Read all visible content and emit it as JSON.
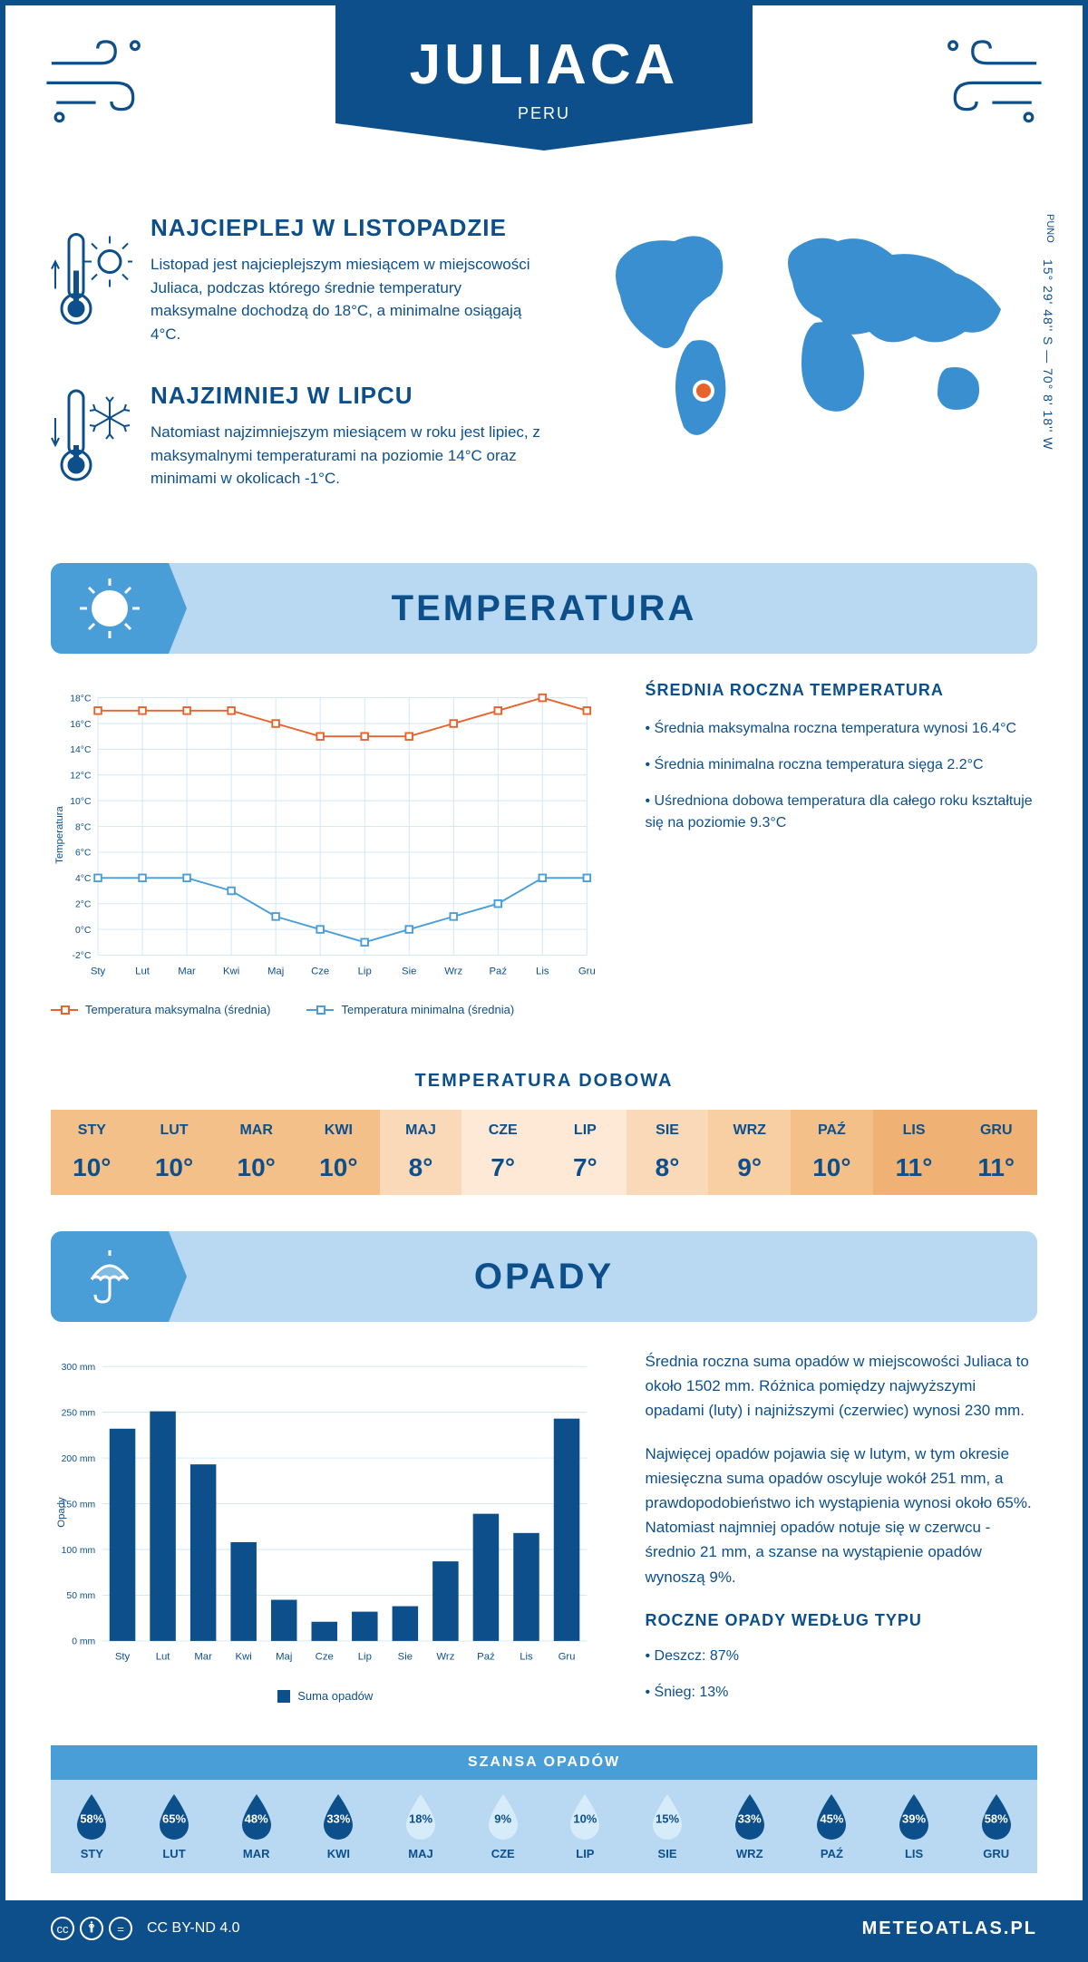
{
  "header": {
    "city": "JULIACA",
    "country": "PERU"
  },
  "coords": "15° 29' 48'' S — 70° 8' 18'' W",
  "region": "PUNO",
  "intro": {
    "hot": {
      "title": "NAJCIEPLEJ W LISTOPADZIE",
      "text": "Listopad jest najcieplejszym miesiącem w miejscowości Juliaca, podczas którego średnie temperatury maksymalne dochodzą do 18°C, a minimalne osiągają 4°C."
    },
    "cold": {
      "title": "NAJZIMNIEJ W LIPCU",
      "text": "Natomiast najzimniejszym miesiącem w roku jest lipiec, z maksymalnymi temperaturami na poziomie 14°C oraz minimami w okolicach -1°C."
    }
  },
  "temperature": {
    "section_title": "TEMPERATURA",
    "months": [
      "Sty",
      "Lut",
      "Mar",
      "Kwi",
      "Maj",
      "Cze",
      "Lip",
      "Sie",
      "Wrz",
      "Paź",
      "Lis",
      "Gru"
    ],
    "max_series": [
      17,
      17,
      17,
      17,
      16,
      15,
      15,
      15,
      16,
      17,
      18,
      17
    ],
    "min_series": [
      4,
      4,
      4,
      3,
      1,
      0,
      -1,
      0,
      1,
      2,
      4,
      4
    ],
    "ylim": [
      -2,
      18
    ],
    "ytick_step": 2,
    "ylabel": "Temperatura",
    "max_color": "#e8622c",
    "min_color": "#4a9ed8",
    "grid_color": "#d0e5f5",
    "bg": "#ffffff",
    "legend_max": "Temperatura maksymalna (średnia)",
    "legend_min": "Temperatura minimalna (średnia)",
    "info_title": "ŚREDNIA ROCZNA TEMPERATURA",
    "info_items": [
      "Średnia maksymalna roczna temperatura wynosi 16.4°C",
      "Średnia minimalna roczna temperatura sięga 2.2°C",
      "Uśredniona dobowa temperatura dla całego roku kształtuje się na poziomie 9.3°C"
    ],
    "daily_title": "TEMPERATURA DOBOWA",
    "daily_months": [
      "STY",
      "LUT",
      "MAR",
      "KWI",
      "MAJ",
      "CZE",
      "LIP",
      "SIE",
      "WRZ",
      "PAŹ",
      "LIS",
      "GRU"
    ],
    "daily_values": [
      "10°",
      "10°",
      "10°",
      "10°",
      "8°",
      "7°",
      "7°",
      "8°",
      "9°",
      "10°",
      "11°",
      "11°"
    ],
    "daily_colors": [
      "#f4c089",
      "#f4c089",
      "#f4c089",
      "#f4c089",
      "#fad9b8",
      "#fde9d6",
      "#fde9d6",
      "#fad9b8",
      "#f8cfa3",
      "#f4c089",
      "#f0b274",
      "#f0b274"
    ]
  },
  "precip": {
    "section_title": "OPADY",
    "months": [
      "Sty",
      "Lut",
      "Mar",
      "Kwi",
      "Maj",
      "Cze",
      "Lip",
      "Sie",
      "Wrz",
      "Paź",
      "Lis",
      "Gru"
    ],
    "values": [
      232,
      251,
      193,
      108,
      45,
      21,
      32,
      38,
      87,
      139,
      118,
      243
    ],
    "ylim": [
      0,
      300
    ],
    "ytick_step": 50,
    "ylabel": "Opady",
    "bar_color": "#0d4f8b",
    "grid_color": "#d0e5f5",
    "legend": "Suma opadów",
    "text1": "Średnia roczna suma opadów w miejscowości Juliaca to około 1502 mm. Różnica pomiędzy najwyższymi opadami (luty) i najniższymi (czerwiec) wynosi 230 mm.",
    "text2": "Najwięcej opadów pojawia się w lutym, w tym okresie miesięczna suma opadów oscyluje wokół 251 mm, a prawdopodobieństwo ich wystąpienia wynosi około 65%. Natomiast najmniej opadów notuje się w czerwcu - średnio 21 mm, a szanse na wystąpienie opadów wynoszą 9%.",
    "chance_title": "SZANSA OPADÓW",
    "chance_months": [
      "STY",
      "LUT",
      "MAR",
      "KWI",
      "MAJ",
      "CZE",
      "LIP",
      "SIE",
      "WRZ",
      "PAŹ",
      "LIS",
      "GRU"
    ],
    "chance_pct": [
      "58%",
      "65%",
      "48%",
      "33%",
      "18%",
      "9%",
      "10%",
      "15%",
      "33%",
      "45%",
      "39%",
      "58%"
    ],
    "chance_fills": [
      "#0d4f8b",
      "#0d4f8b",
      "#0d4f8b",
      "#0d4f8b",
      "#d6ecfb",
      "#d6ecfb",
      "#d6ecfb",
      "#d6ecfb",
      "#0d4f8b",
      "#0d4f8b",
      "#0d4f8b",
      "#0d4f8b"
    ],
    "chance_textdark": [
      false,
      false,
      false,
      false,
      true,
      true,
      true,
      true,
      false,
      false,
      false,
      false
    ],
    "by_type_title": "ROCZNE OPADY WEDŁUG TYPU",
    "by_type": [
      "Deszcz: 87%",
      "Śnieg: 13%"
    ]
  },
  "footer": {
    "license": "CC BY-ND 4.0",
    "site": "METEOATLAS.PL"
  }
}
